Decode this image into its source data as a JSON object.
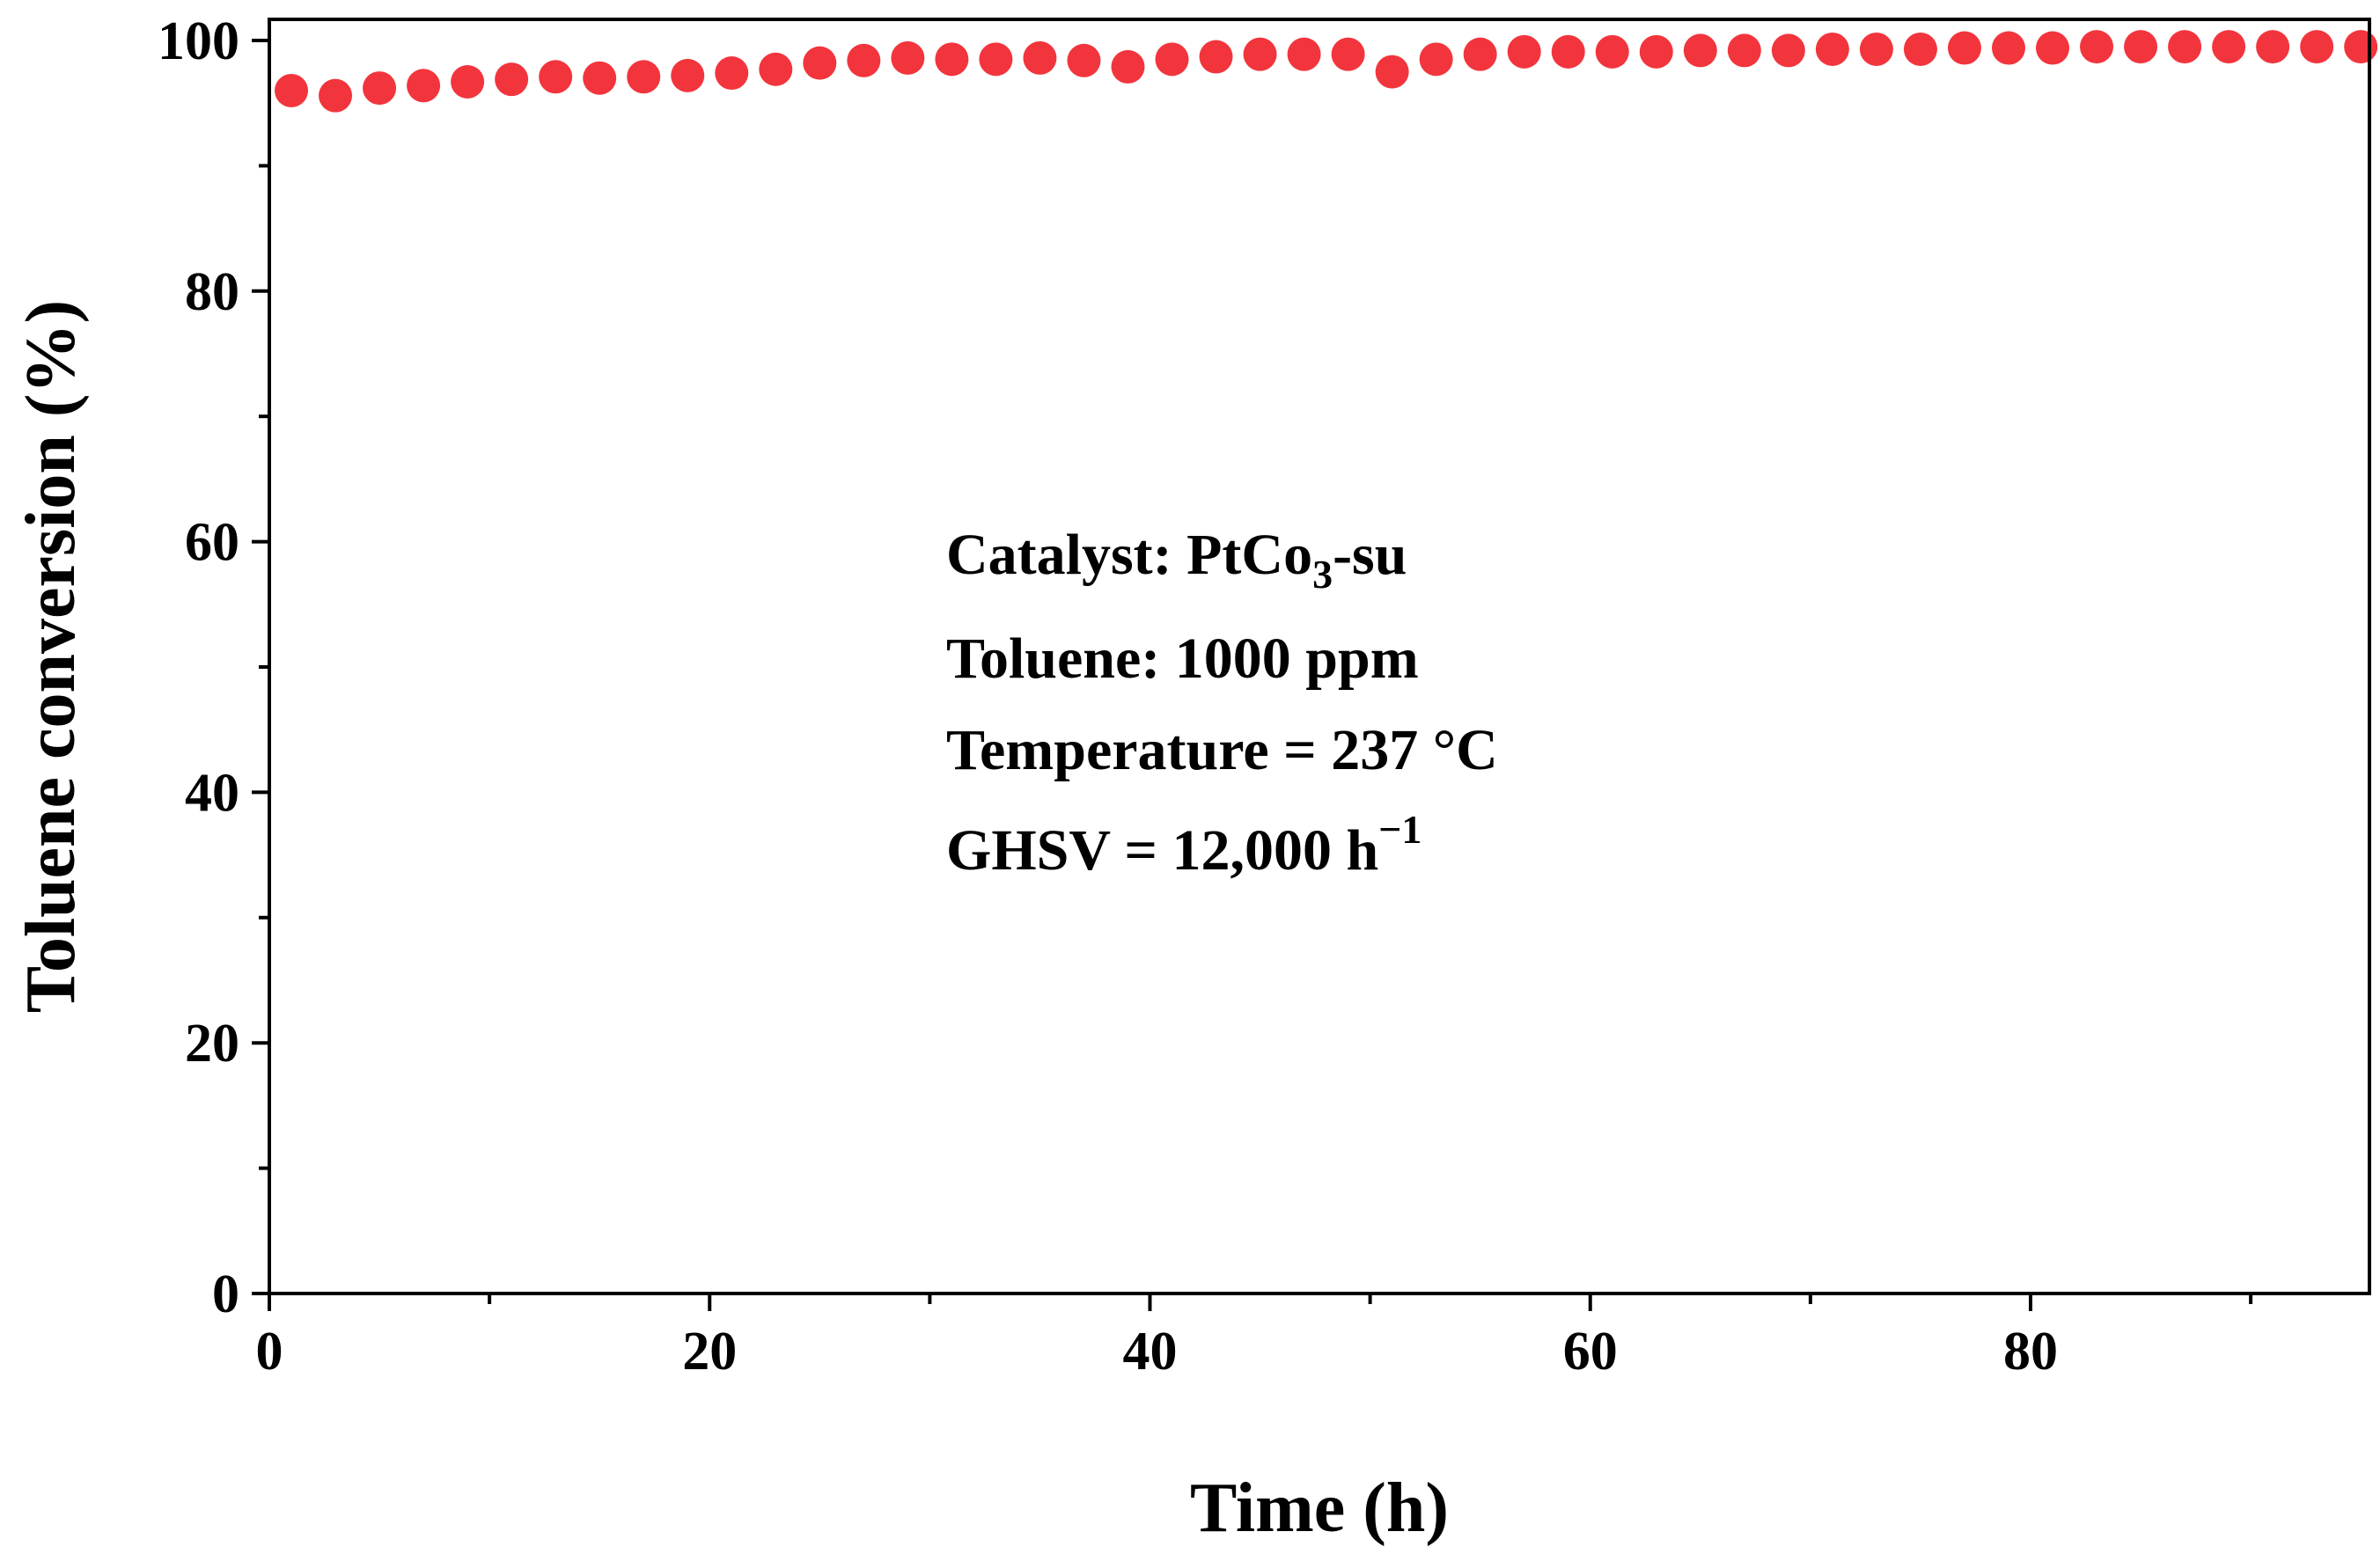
{
  "chart_data": {
    "type": "scatter",
    "xlabel": "Time (h)",
    "ylabel": "Toluene conversion (%)",
    "xlim": [
      0,
      96
    ],
    "ylim": [
      0,
      100
    ],
    "xticks": [
      0,
      20,
      40,
      60,
      80
    ],
    "yticks": [
      0,
      20,
      40,
      60,
      80,
      100
    ],
    "grid": false,
    "marker_color": "#f2353d",
    "series": [
      {
        "x": [
          1,
          3,
          5,
          7,
          9,
          11,
          13,
          15,
          17,
          19,
          21,
          23,
          25,
          27,
          29,
          31,
          33,
          35,
          37,
          39,
          41,
          43,
          45,
          47,
          49,
          51,
          53,
          55,
          57,
          59,
          61,
          63,
          65,
          67,
          69,
          71,
          73,
          75,
          77,
          79,
          81,
          83,
          85,
          87,
          89,
          91,
          93,
          95
        ],
        "y": [
          96.0,
          95.6,
          96.2,
          96.4,
          96.7,
          96.9,
          97.1,
          97.0,
          97.1,
          97.2,
          97.4,
          97.7,
          98.2,
          98.4,
          98.6,
          98.5,
          98.5,
          98.6,
          98.4,
          97.9,
          98.5,
          98.7,
          98.9,
          98.9,
          98.9,
          97.5,
          98.5,
          98.9,
          99.1,
          99.1,
          99.1,
          99.1,
          99.2,
          99.2,
          99.2,
          99.3,
          99.3,
          99.3,
          99.4,
          99.4,
          99.4,
          99.5,
          99.5,
          99.5,
          99.5,
          99.5,
          99.5,
          99.5
        ]
      }
    ],
    "annotations": {
      "catalyst_prefix": "Catalyst: PtCo",
      "catalyst_subscript": "3",
      "catalyst_suffix": "-su",
      "toluene": "Toluene: 1000 ppm",
      "temperature": "Temperature = 237 °C",
      "ghsv_base": "GHSV = 12,000 h",
      "ghsv_superscript": "−1"
    }
  }
}
